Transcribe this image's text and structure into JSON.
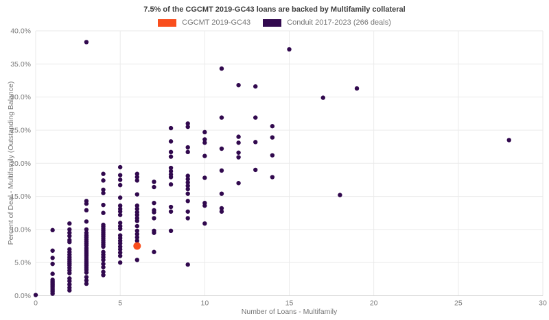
{
  "title": "7.5% of the CGCMT 2019-GC43 loans are backed by Multifamily collateral",
  "legend": {
    "items": [
      {
        "label": "CGCMT 2019-GC43",
        "color": "#f94e1d"
      },
      {
        "label": "Conduit 2017-2023 (266 deals)",
        "color": "#31094e"
      }
    ]
  },
  "colors": {
    "grid": "#eaeaea",
    "axis_line": "#d8d8d8",
    "tick_label": "#7a7a7a",
    "title_text": "#3d3d3d",
    "background": "#ffffff"
  },
  "chart_data": {
    "type": "scatter",
    "title": "7.5% of the CGCMT 2019-GC43 loans are backed by Multifamily collateral",
    "xlabel": "Number of Loans - Multifamily",
    "ylabel": "Percent of Deal - Multifamily (Outstanding Balance)",
    "xlim": [
      0,
      30
    ],
    "ylim": [
      0,
      40
    ],
    "x_ticks": [
      0,
      5,
      10,
      15,
      20,
      25,
      30
    ],
    "x_tick_labels": [
      "0",
      "5",
      "10",
      "15",
      "20",
      "25",
      "30"
    ],
    "y_ticks": [
      0,
      5,
      10,
      15,
      20,
      25,
      30,
      35,
      40
    ],
    "y_tick_labels": [
      "0.0%",
      "5.0%",
      "10.0%",
      "15.0%",
      "20.0%",
      "25.0%",
      "30.0%",
      "35.0%",
      "40.0%"
    ],
    "grid": true,
    "legend_position": "top-center",
    "series": [
      {
        "name": "CGCMT 2019-GC43",
        "color": "#f94e1d",
        "marker_radius": 5.5,
        "points": [
          [
            6,
            7.5
          ]
        ]
      },
      {
        "name": "Conduit 2017-2023 (266 deals)",
        "color": "#31094e",
        "marker_radius": 3.2,
        "points": [
          [
            0,
            0.1
          ],
          [
            1,
            9.9
          ],
          [
            1,
            6.8
          ],
          [
            1,
            5.7
          ],
          [
            1,
            4.8
          ],
          [
            1,
            3.3
          ],
          [
            1,
            2.4
          ],
          [
            1,
            2.2
          ],
          [
            1,
            2.0
          ],
          [
            1,
            1.8
          ],
          [
            1,
            1.6
          ],
          [
            1,
            1.4
          ],
          [
            1,
            1.2
          ],
          [
            1,
            1.0
          ],
          [
            1,
            0.8
          ],
          [
            1,
            0.6
          ],
          [
            1,
            0.3
          ],
          [
            2,
            10.9
          ],
          [
            2,
            10.0
          ],
          [
            2,
            9.5
          ],
          [
            2,
            9.0
          ],
          [
            2,
            8.4
          ],
          [
            2,
            8.1
          ],
          [
            2,
            7.0
          ],
          [
            2,
            6.6
          ],
          [
            2,
            6.2
          ],
          [
            2,
            5.8
          ],
          [
            2,
            5.5
          ],
          [
            2,
            5.2
          ],
          [
            2,
            4.9
          ],
          [
            2,
            4.6
          ],
          [
            2,
            4.2
          ],
          [
            2,
            3.8
          ],
          [
            2,
            3.4
          ],
          [
            2,
            2.6
          ],
          [
            2,
            2.2
          ],
          [
            2,
            1.7
          ],
          [
            2,
            1.2
          ],
          [
            2,
            0.8
          ],
          [
            3,
            38.3
          ],
          [
            3,
            14.3
          ],
          [
            3,
            13.9
          ],
          [
            3,
            12.9
          ],
          [
            3,
            11.2
          ],
          [
            3,
            10.0
          ],
          [
            3,
            9.5
          ],
          [
            3,
            9.1
          ],
          [
            3,
            8.8
          ],
          [
            3,
            8.5
          ],
          [
            3,
            8.2
          ],
          [
            3,
            7.9
          ],
          [
            3,
            7.6
          ],
          [
            3,
            7.2
          ],
          [
            3,
            6.9
          ],
          [
            3,
            6.6
          ],
          [
            3,
            6.3
          ],
          [
            3,
            6.0
          ],
          [
            3,
            5.7
          ],
          [
            3,
            5.4
          ],
          [
            3,
            5.1
          ],
          [
            3,
            4.8
          ],
          [
            3,
            4.5
          ],
          [
            3,
            4.2
          ],
          [
            3,
            3.9
          ],
          [
            3,
            3.5
          ],
          [
            3,
            2.8
          ],
          [
            3,
            2.3
          ],
          [
            3,
            1.8
          ],
          [
            4,
            18.4
          ],
          [
            4,
            17.4
          ],
          [
            4,
            16.0
          ],
          [
            4,
            15.5
          ],
          [
            4,
            13.7
          ],
          [
            4,
            12.5
          ],
          [
            4,
            10.7
          ],
          [
            4,
            10.4
          ],
          [
            4,
            10.1
          ],
          [
            4,
            9.8
          ],
          [
            4,
            9.5
          ],
          [
            4,
            9.2
          ],
          [
            4,
            8.9
          ],
          [
            4,
            8.6
          ],
          [
            4,
            8.3
          ],
          [
            4,
            8.0
          ],
          [
            4,
            7.7
          ],
          [
            4,
            7.4
          ],
          [
            4,
            6.6
          ],
          [
            4,
            6.2
          ],
          [
            4,
            5.8
          ],
          [
            4,
            5.4
          ],
          [
            4,
            4.8
          ],
          [
            4,
            4.3
          ],
          [
            4,
            3.6
          ],
          [
            4,
            3.1
          ],
          [
            5,
            19.4
          ],
          [
            5,
            18.2
          ],
          [
            5,
            17.5
          ],
          [
            5,
            16.7
          ],
          [
            5,
            14.8
          ],
          [
            5,
            13.6
          ],
          [
            5,
            13.1
          ],
          [
            5,
            12.7
          ],
          [
            5,
            12.2
          ],
          [
            5,
            11.0
          ],
          [
            5,
            10.5
          ],
          [
            5,
            10.1
          ],
          [
            5,
            9.1
          ],
          [
            5,
            8.7
          ],
          [
            5,
            8.3
          ],
          [
            5,
            7.9
          ],
          [
            5,
            7.4
          ],
          [
            5,
            7.0
          ],
          [
            5,
            6.5
          ],
          [
            5,
            6.0
          ],
          [
            5,
            5.0
          ],
          [
            6,
            18.4
          ],
          [
            6,
            17.9
          ],
          [
            6,
            17.4
          ],
          [
            6,
            15.3
          ],
          [
            6,
            13.6
          ],
          [
            6,
            13.1
          ],
          [
            6,
            12.6
          ],
          [
            6,
            12.2
          ],
          [
            6,
            11.7
          ],
          [
            6,
            11.3
          ],
          [
            6,
            10.5
          ],
          [
            6,
            9.8
          ],
          [
            6,
            9.3
          ],
          [
            6,
            8.8
          ],
          [
            6,
            8.3
          ],
          [
            6,
            5.4
          ],
          [
            7,
            17.2
          ],
          [
            7,
            16.4
          ],
          [
            7,
            14.0
          ],
          [
            7,
            12.9
          ],
          [
            7,
            12.6
          ],
          [
            7,
            11.7
          ],
          [
            7,
            9.8
          ],
          [
            7,
            9.5
          ],
          [
            7,
            6.6
          ],
          [
            8,
            25.3
          ],
          [
            8,
            23.3
          ],
          [
            8,
            21.7
          ],
          [
            8,
            21.0
          ],
          [
            8,
            19.3
          ],
          [
            8,
            18.8
          ],
          [
            8,
            18.3
          ],
          [
            8,
            17.9
          ],
          [
            8,
            16.8
          ],
          [
            8,
            13.4
          ],
          [
            8,
            12.7
          ],
          [
            8,
            9.8
          ],
          [
            9,
            26.0
          ],
          [
            9,
            25.5
          ],
          [
            9,
            22.4
          ],
          [
            9,
            21.7
          ],
          [
            9,
            18.1
          ],
          [
            9,
            17.6
          ],
          [
            9,
            17.1
          ],
          [
            9,
            16.6
          ],
          [
            9,
            16.1
          ],
          [
            9,
            15.4
          ],
          [
            9,
            14.3
          ],
          [
            9,
            12.7
          ],
          [
            9,
            11.7
          ],
          [
            9,
            4.7
          ],
          [
            10,
            24.7
          ],
          [
            10,
            23.6
          ],
          [
            10,
            23.1
          ],
          [
            10,
            21.1
          ],
          [
            10,
            17.8
          ],
          [
            10,
            14.0
          ],
          [
            10,
            13.6
          ],
          [
            10,
            10.9
          ],
          [
            11,
            34.3
          ],
          [
            11,
            26.9
          ],
          [
            11,
            22.2
          ],
          [
            11,
            18.9
          ],
          [
            11,
            15.4
          ],
          [
            11,
            13.2
          ],
          [
            11,
            12.7
          ],
          [
            12,
            31.8
          ],
          [
            12,
            24.0
          ],
          [
            12,
            23.1
          ],
          [
            12,
            21.6
          ],
          [
            12,
            20.9
          ],
          [
            12,
            17.0
          ],
          [
            13,
            31.6
          ],
          [
            13,
            26.9
          ],
          [
            13,
            23.2
          ],
          [
            13,
            19.0
          ],
          [
            14,
            25.6
          ],
          [
            14,
            23.9
          ],
          [
            14,
            21.2
          ],
          [
            14,
            17.9
          ],
          [
            15,
            37.2
          ],
          [
            17,
            29.9
          ],
          [
            18,
            15.2
          ],
          [
            19,
            31.3
          ],
          [
            28,
            23.5
          ]
        ]
      }
    ]
  }
}
